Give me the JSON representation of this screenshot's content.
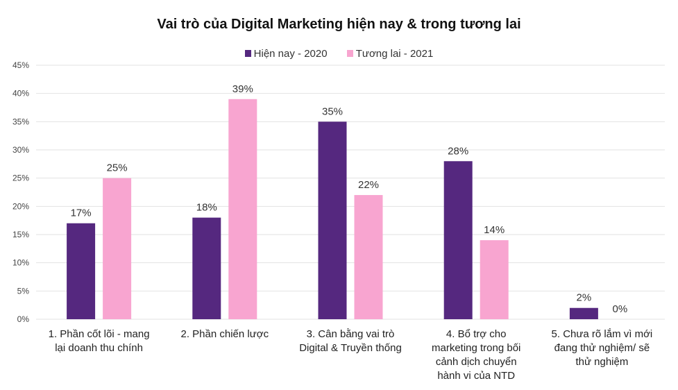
{
  "chart_data": {
    "type": "bar",
    "title": "Vai trò của Digital Marketing hiện nay & trong tương lai",
    "xlabel": "",
    "ylabel": "",
    "ylim": [
      0,
      45
    ],
    "yticks": [
      "0%",
      "5%",
      "10%",
      "15%",
      "20%",
      "25%",
      "30%",
      "35%",
      "40%",
      "45%"
    ],
    "grid": true,
    "legend_position": "top",
    "categories": [
      [
        "1. Phần cốt lõi - mang",
        "lại doanh thu chính"
      ],
      [
        "2. Phần chiến lược"
      ],
      [
        "3. Cân bằng vai trò",
        "Digital & Truyền thống"
      ],
      [
        "4. Bổ trợ cho",
        "marketing trong bối",
        "cảnh dịch chuyển",
        "hành vi của NTD"
      ],
      [
        "5. Chưa rõ lắm vì mới",
        "đang thử nghiệm/ sẽ",
        "thử nghiệm"
      ]
    ],
    "series": [
      {
        "name": "Hiện nay - 2020",
        "color": "#55287f",
        "values": [
          17,
          18,
          35,
          28,
          2
        ],
        "labels": [
          "17%",
          "18%",
          "35%",
          "28%",
          "2%"
        ]
      },
      {
        "name": "Tương lai - 2021",
        "color": "#f8a5d0",
        "values": [
          25,
          39,
          22,
          14,
          0
        ],
        "labels": [
          "25%",
          "39%",
          "22%",
          "14%",
          "0%"
        ]
      }
    ]
  }
}
